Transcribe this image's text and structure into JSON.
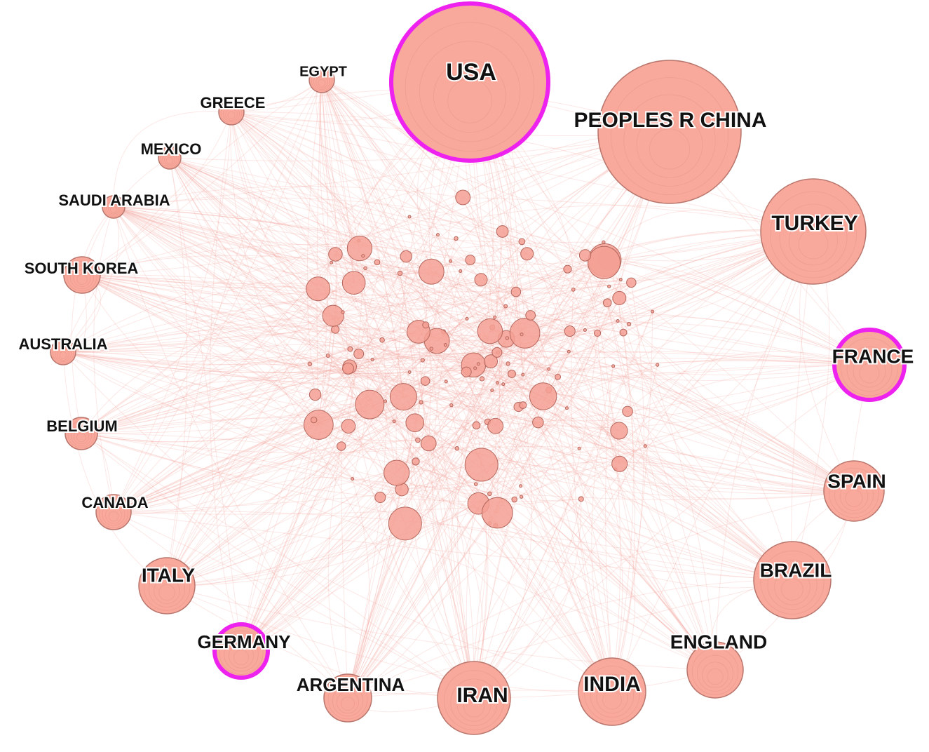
{
  "nodes": [
    {
      "label": "USA"
    },
    {
      "label": "PEOPLES R CHINA"
    },
    {
      "label": "TURKEY"
    },
    {
      "label": "FRANCE"
    },
    {
      "label": "SPAIN"
    },
    {
      "label": "BRAZIL"
    },
    {
      "label": "ENGLAND"
    },
    {
      "label": "INDIA"
    },
    {
      "label": "IRAN"
    },
    {
      "label": "ARGENTINA"
    },
    {
      "label": "GERMANY"
    },
    {
      "label": "ITALY"
    },
    {
      "label": "CANADA"
    },
    {
      "label": "BELGIUM"
    },
    {
      "label": "AUSTRALIA"
    },
    {
      "label": "SOUTH KOREA"
    },
    {
      "label": "SAUDI ARABIA"
    },
    {
      "label": "MEXICO"
    },
    {
      "label": "GREECE"
    },
    {
      "label": "EGYPT"
    }
  ]
}
